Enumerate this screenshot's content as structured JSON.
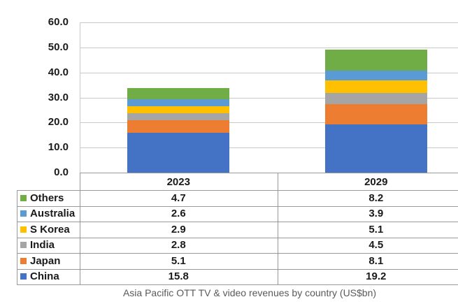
{
  "caption": "Asia Pacific OTT TV & video revenues by country (US$bn)",
  "colors": {
    "background": "#ffffff",
    "grid": "#c9c9c9",
    "border": "#999999",
    "axis_text": "#1a1a1a",
    "caption_text": "#595a5c"
  },
  "chart_data": {
    "type": "bar",
    "stacked": true,
    "title": "Asia Pacific OTT TV & video revenues by country (US$bn)",
    "categories": [
      "2023",
      "2029"
    ],
    "series": [
      {
        "name": "China",
        "color": "#4472C4",
        "values": [
          15.8,
          19.2
        ]
      },
      {
        "name": "Japan",
        "color": "#ED7D31",
        "values": [
          5.1,
          8.1
        ]
      },
      {
        "name": "India",
        "color": "#A5A5A5",
        "values": [
          2.8,
          4.5
        ]
      },
      {
        "name": "S Korea",
        "color": "#FFC000",
        "values": [
          2.9,
          5.1
        ]
      },
      {
        "name": "Australia",
        "color": "#5B9BD5",
        "values": [
          2.6,
          3.9
        ]
      },
      {
        "name": "Others",
        "color": "#70AD47",
        "values": [
          4.7,
          8.2
        ]
      }
    ],
    "ylim": [
      0,
      60
    ],
    "ytick_step": 10,
    "yticks": [
      "60.0",
      "50.0",
      "40.0",
      "30.0",
      "20.0",
      "10.0",
      "0.0"
    ],
    "xlabel": "",
    "ylabel": "",
    "grid": true,
    "legend_position": "table-below"
  },
  "table": {
    "header": [
      "2023",
      "2029"
    ],
    "rows": [
      {
        "label": "Others",
        "values": [
          "4.7",
          "8.2"
        ]
      },
      {
        "label": "Australia",
        "values": [
          "2.6",
          "3.9"
        ]
      },
      {
        "label": "S Korea",
        "values": [
          "2.9",
          "5.1"
        ]
      },
      {
        "label": "India",
        "values": [
          "2.8",
          "4.5"
        ]
      },
      {
        "label": "Japan",
        "values": [
          "5.1",
          "8.1"
        ]
      },
      {
        "label": "China",
        "values": [
          "15.8",
          "19.2"
        ]
      }
    ]
  }
}
